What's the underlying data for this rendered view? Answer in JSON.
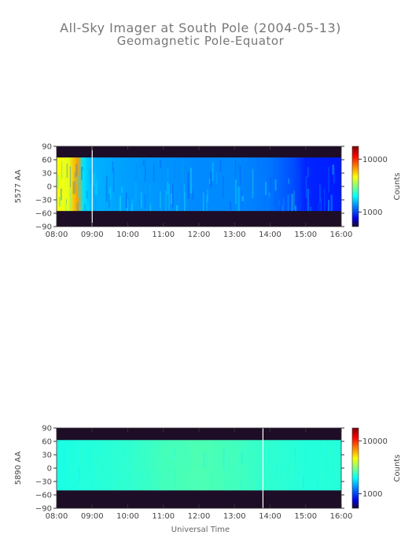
{
  "title": "All-Sky Imager at South Pole (2004-05-13)",
  "subtitle": "Geomagnetic Pole-Equator",
  "xlabel": "Universal Time",
  "chart_data": [
    {
      "type": "heatmap",
      "ylabel": "5577 AA",
      "colorbar_label": "Counts",
      "colorbar_ticks": [
        "10000",
        "1000"
      ],
      "colorbar_scale": "log",
      "x_ticks": [
        "08:00",
        "09:00",
        "10:00",
        "11:00",
        "12:00",
        "13:00",
        "14:00",
        "15:00",
        "16:00"
      ],
      "y_ticks": [
        "90",
        "60",
        "30",
        "0",
        "-30",
        "-60",
        "-90"
      ],
      "xlim": [
        "08:00",
        "16:00"
      ],
      "ylim": [
        -90,
        90
      ],
      "data_band": [
        -55,
        65
      ],
      "marker_time": "09:00",
      "intensity_profile": [
        {
          "t": "08:00",
          "level": 0.62
        },
        {
          "t": "08:20",
          "level": 0.6
        },
        {
          "t": "08:35",
          "level": 0.72
        },
        {
          "t": "08:45",
          "level": 0.35
        },
        {
          "t": "09:00",
          "level": 0.3
        },
        {
          "t": "10:00",
          "level": 0.28
        },
        {
          "t": "11:00",
          "level": 0.27
        },
        {
          "t": "12:00",
          "level": 0.26
        },
        {
          "t": "13:00",
          "level": 0.26
        },
        {
          "t": "14:00",
          "level": 0.24
        },
        {
          "t": "14:40",
          "level": 0.2
        },
        {
          "t": "15:00",
          "level": 0.16
        },
        {
          "t": "16:00",
          "level": 0.15
        }
      ]
    },
    {
      "type": "heatmap",
      "ylabel": "5890 AA",
      "colorbar_label": "Counts",
      "colorbar_ticks": [
        "10000",
        "1000"
      ],
      "colorbar_scale": "log",
      "x_ticks": [
        "08:00",
        "09:00",
        "10:00",
        "11:00",
        "12:00",
        "13:00",
        "14:00",
        "15:00",
        "16:00"
      ],
      "y_ticks": [
        "90",
        "60",
        "30",
        "0",
        "-30",
        "-60",
        "-90"
      ],
      "xlim": [
        "08:00",
        "16:00"
      ],
      "ylim": [
        -90,
        90
      ],
      "data_band": [
        -50,
        63
      ],
      "marker_time": "13:48",
      "intensity_profile": [
        {
          "t": "08:00",
          "level": 0.4
        },
        {
          "t": "10:00",
          "level": 0.42
        },
        {
          "t": "11:00",
          "level": 0.44
        },
        {
          "t": "12:00",
          "level": 0.45
        },
        {
          "t": "13:00",
          "level": 0.44
        },
        {
          "t": "14:00",
          "level": 0.42
        },
        {
          "t": "15:00",
          "level": 0.41
        },
        {
          "t": "16:00",
          "level": 0.41
        }
      ]
    }
  ]
}
